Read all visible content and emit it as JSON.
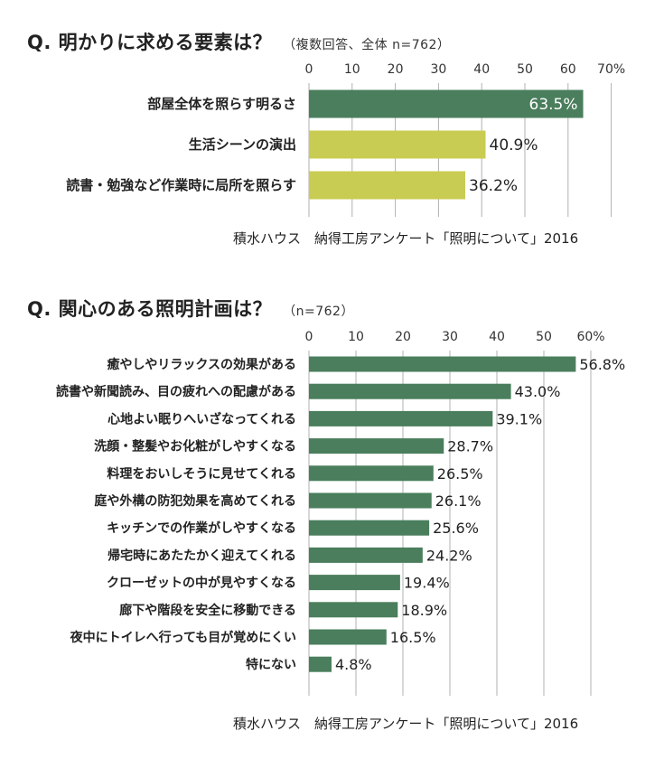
{
  "sources": [
    "積水ハウス　納得工房アンケート「照明について」2016",
    "積水ハウス　納得工房アンケート「照明について」2016"
  ],
  "colors": {
    "dark_green": "#4a7e5c",
    "yellow_green": "#c9cc52",
    "grid": "#b0b0b0"
  },
  "chart_data": [
    {
      "type": "bar",
      "orientation": "horizontal",
      "title": "Q. 明かりに求める要素は？",
      "subtitle": "（複数回答、全体 n=762）",
      "ticks": [
        "0",
        "10",
        "20",
        "30",
        "40",
        "50",
        "60",
        "70%"
      ],
      "xlim": [
        0,
        70
      ],
      "categories": [
        "部屋全体を照らす明るさ",
        "生活シーンの演出",
        "読書・勉強など作業時に局所を照らす"
      ],
      "values": [
        63.5,
        40.9,
        36.2
      ],
      "value_labels": [
        "63.5%",
        "40.9%",
        "36.2%"
      ],
      "bar_colors": [
        "#4a7e5c",
        "#c9cc52",
        "#c9cc52"
      ],
      "grid": true
    },
    {
      "type": "bar",
      "orientation": "horizontal",
      "title": "Q. 関心のある照明計画は？",
      "subtitle": "（n=762）",
      "ticks": [
        "0",
        "10",
        "20",
        "30",
        "40",
        "50",
        "60%"
      ],
      "xlim": [
        0,
        60
      ],
      "categories": [
        "癒やしやリラックスの効果がある",
        "読書や新聞読み、目の疲れへの配慮がある",
        "心地よい眠りへいざなってくれる",
        "洗顔・整髪やお化粧がしやすくなる",
        "料理をおいしそうに見せてくれる",
        "庭や外構の防犯効果を高めてくれる",
        "キッチンでの作業がしやすくなる",
        "帰宅時にあたたかく迎えてくれる",
        "クローゼットの中が見やすくなる",
        "廊下や階段を安全に移動できる",
        "夜中にトイレへ行っても目が覚めにくい",
        "特にない"
      ],
      "values": [
        56.8,
        43.0,
        39.1,
        28.7,
        26.5,
        26.1,
        25.6,
        24.2,
        19.4,
        18.9,
        16.5,
        4.8
      ],
      "value_labels": [
        "56.8%",
        "43.0%",
        "39.1%",
        "28.7%",
        "26.5%",
        "26.1%",
        "25.6%",
        "24.2%",
        "19.4%",
        "18.9%",
        "16.5%",
        "4.8%"
      ],
      "bar_colors": [
        "#4a7e5c"
      ],
      "grid": true
    }
  ]
}
